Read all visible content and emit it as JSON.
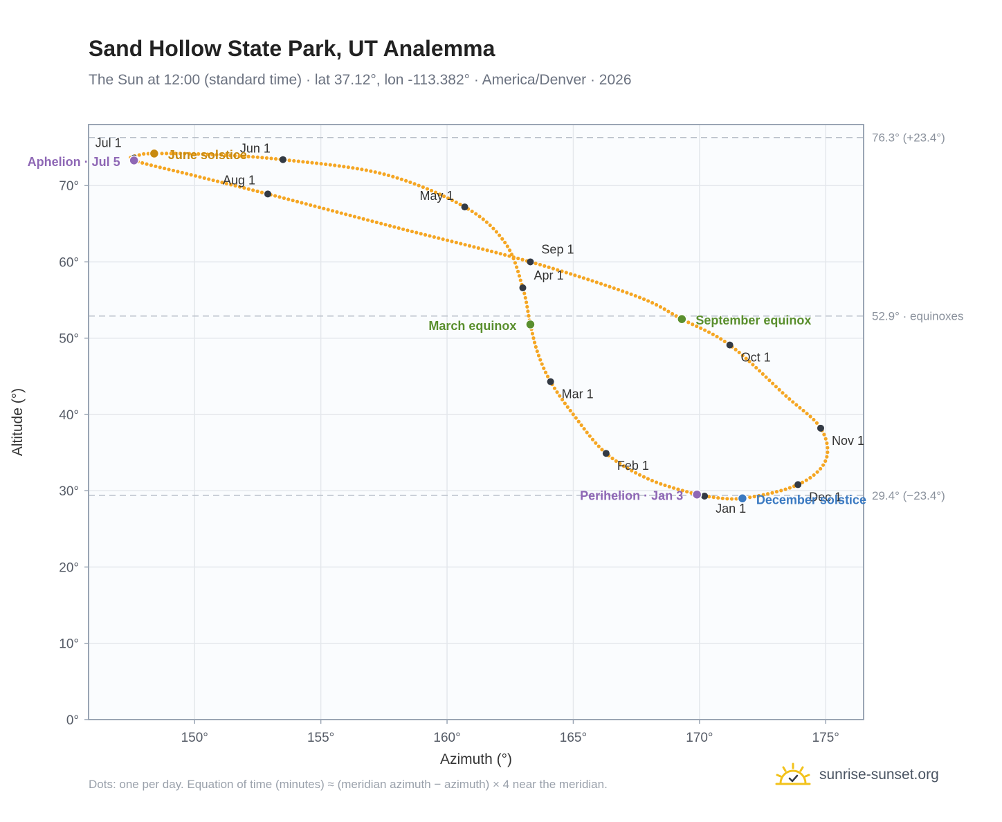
{
  "header": {
    "title": "Sand Hollow State Park, UT Analemma",
    "subtitle": "The Sun at 12:00 (standard time) · lat 37.12°, lon -113.382° · America/Denver · 2026"
  },
  "footer": {
    "note": "Dots: one per day. Equation of time (minutes) ≈ (meridian azimuth − azimuth) × 4 near the meridian.",
    "brand": "sunrise-sunset.org"
  },
  "colors": {
    "curve": "#f5a623",
    "month_dot": "#333a44",
    "solstice_june": "#c88a10",
    "solstice_december": "#3b7ac2",
    "equinox": "#5a8f2e",
    "apsis": "#8e67b5",
    "grid": "#e4e7ec",
    "plot_bg": "#fafcfe",
    "frame": "#9aa5b4",
    "ref_line": "#b8bfc9"
  },
  "chart_data": {
    "type": "scatter",
    "xlabel": "Azimuth (°)",
    "ylabel": "Altitude (°)",
    "xlim": [
      145.8,
      176.5
    ],
    "ylim": [
      0,
      78
    ],
    "xticks": [
      150,
      155,
      160,
      165,
      170,
      175
    ],
    "yticks": [
      0,
      10,
      20,
      30,
      40,
      50,
      60,
      70
    ],
    "xtick_labels": [
      "150°",
      "155°",
      "160°",
      "165°",
      "170°",
      "175°"
    ],
    "ytick_labels": [
      "0°",
      "10°",
      "20°",
      "30°",
      "40°",
      "50°",
      "60°",
      "70°"
    ],
    "grid": true,
    "reference_lines": [
      {
        "altitude": 76.3,
        "label": "76.3° (+23.4°)"
      },
      {
        "altitude": 52.9,
        "label": "52.9° · equinoxes"
      },
      {
        "altitude": 29.4,
        "label": "29.4° (−23.4°)"
      }
    ],
    "analemma_path": [
      {
        "az": 170.2,
        "alt": 29.3
      },
      {
        "az": 171.7,
        "alt": 29.0
      },
      {
        "az": 173.9,
        "alt": 30.8
      },
      {
        "az": 175.0,
        "alt": 34.0
      },
      {
        "az": 174.8,
        "alt": 38.2
      },
      {
        "az": 173.4,
        "alt": 42.5
      },
      {
        "az": 171.2,
        "alt": 49.1
      },
      {
        "az": 169.3,
        "alt": 52.5
      },
      {
        "az": 167.5,
        "alt": 55.5
      },
      {
        "az": 163.3,
        "alt": 60.0
      },
      {
        "az": 158.0,
        "alt": 64.5
      },
      {
        "az": 152.9,
        "alt": 68.9
      },
      {
        "az": 150.0,
        "alt": 71.3
      },
      {
        "az": 147.6,
        "alt": 73.3
      },
      {
        "az": 147.8,
        "alt": 74.0
      },
      {
        "az": 148.4,
        "alt": 74.2
      },
      {
        "az": 150.5,
        "alt": 74.1
      },
      {
        "az": 153.5,
        "alt": 73.4
      },
      {
        "az": 157.5,
        "alt": 71.5
      },
      {
        "az": 160.7,
        "alt": 67.2
      },
      {
        "az": 162.3,
        "alt": 62.5
      },
      {
        "az": 163.0,
        "alt": 56.6
      },
      {
        "az": 163.3,
        "alt": 51.8
      },
      {
        "az": 163.6,
        "alt": 48.0
      },
      {
        "az": 164.1,
        "alt": 44.3
      },
      {
        "az": 165.0,
        "alt": 40.0
      },
      {
        "az": 166.3,
        "alt": 34.9
      },
      {
        "az": 168.0,
        "alt": 31.5
      },
      {
        "az": 169.9,
        "alt": 29.5
      },
      {
        "az": 170.2,
        "alt": 29.3
      }
    ],
    "month_points": [
      {
        "label": "Jan 1",
        "az": 170.2,
        "alt": 29.3
      },
      {
        "label": "Feb 1",
        "az": 166.3,
        "alt": 34.9
      },
      {
        "label": "Mar 1",
        "az": 164.1,
        "alt": 44.3
      },
      {
        "label": "Apr 1",
        "az": 163.0,
        "alt": 56.6
      },
      {
        "label": "May 1",
        "az": 160.7,
        "alt": 67.2
      },
      {
        "label": "Jun 1",
        "az": 153.5,
        "alt": 73.4
      },
      {
        "label": "Jul 1",
        "az": 147.6,
        "alt": 73.6
      },
      {
        "label": "Aug 1",
        "az": 152.9,
        "alt": 68.9
      },
      {
        "label": "Sep 1",
        "az": 163.3,
        "alt": 60.0
      },
      {
        "label": "Oct 1",
        "az": 171.2,
        "alt": 49.1
      },
      {
        "label": "Nov 1",
        "az": 174.8,
        "alt": 38.2
      },
      {
        "label": "Dec 1",
        "az": 173.9,
        "alt": 30.8
      }
    ],
    "events": [
      {
        "label": "June solstice",
        "az": 148.4,
        "alt": 74.2,
        "color": "#c88a10"
      },
      {
        "label": "December solstice",
        "az": 171.7,
        "alt": 29.0,
        "color": "#3b7ac2"
      },
      {
        "label": "March equinox",
        "az": 163.3,
        "alt": 51.8,
        "color": "#5a8f2e"
      },
      {
        "label": "September equinox",
        "az": 169.3,
        "alt": 52.5,
        "color": "#5a8f2e"
      },
      {
        "label": "Aphelion · Jul 5",
        "az": 147.6,
        "alt": 73.3,
        "color": "#8e67b5"
      },
      {
        "label": "Perihelion · Jan 3",
        "az": 169.9,
        "alt": 29.5,
        "color": "#8e67b5"
      }
    ]
  }
}
